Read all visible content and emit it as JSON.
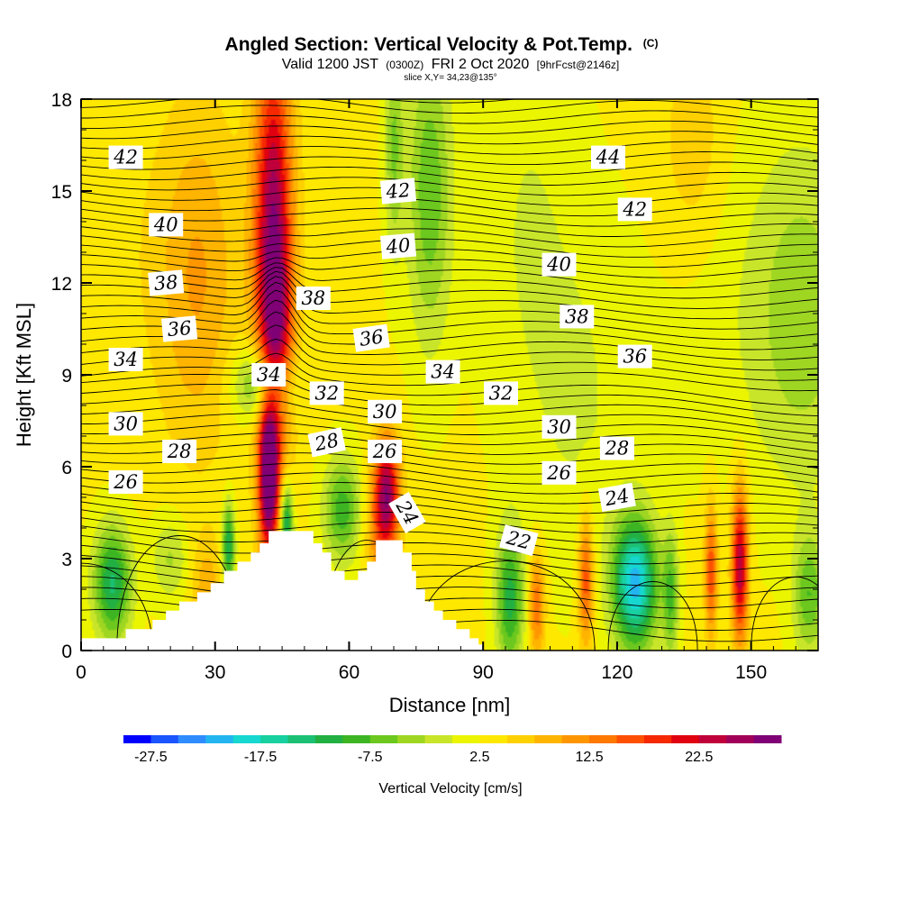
{
  "chart_data": {
    "type": "heatmap",
    "title": "Angled Section: Vertical Velocity & Pot.Temp.",
    "title_copyright": "(C)",
    "subtitle": {
      "prefix": "Valid 1200 JST",
      "utc": "(0300Z)",
      "date": "FRI 2 Oct 2020",
      "forecast": "[9hrFcst@2146z]"
    },
    "slice_text": "slice X,Y= 34,23@135°",
    "xlabel": "Distance [nm]",
    "ylabel": "Height [Kft MSL]",
    "xlim": [
      0,
      165
    ],
    "ylim": [
      0,
      18
    ],
    "xticks": [
      0,
      30,
      60,
      90,
      120,
      150
    ],
    "xtick_labels": [
      "0",
      "30",
      "60",
      "90",
      "120",
      "150"
    ],
    "yticks": [
      0,
      3,
      6,
      9,
      12,
      15,
      18
    ],
    "ytick_labels": [
      "0",
      "3",
      "6",
      "9",
      "12",
      "15",
      "18"
    ],
    "grid": false,
    "colorbar": {
      "label": "Vertical Velocity [cm/s]",
      "levels": [
        -30,
        -27.5,
        -25,
        -22.5,
        -20,
        -17.5,
        -15,
        -12.5,
        -10,
        -7.5,
        -5,
        -2.5,
        0,
        2.5,
        5,
        7.5,
        10,
        12.5,
        15,
        17.5,
        20,
        22.5,
        25,
        27.5,
        30
      ],
      "colors": [
        "#0000ff",
        "#1a55ff",
        "#2f8cff",
        "#23b5f0",
        "#16d8d0",
        "#18d0a0",
        "#1cc072",
        "#22b043",
        "#3db522",
        "#6cc81e",
        "#9ed622",
        "#c9e52a",
        "#ecf500",
        "#ffe800",
        "#ffd000",
        "#ffb400",
        "#ff9600",
        "#ff7800",
        "#ff5000",
        "#f52800",
        "#e00010",
        "#c0003a",
        "#a0005a",
        "#800075"
      ],
      "tick_values": [
        -27.5,
        -17.5,
        -7.5,
        2.5,
        12.5,
        22.5
      ],
      "tick_labels": [
        "-27.5",
        "-17.5",
        "-7.5",
        "2.5",
        "12.5",
        "22.5"
      ]
    },
    "vertical_velocity_features": [
      {
        "x": 43,
        "y": 13.5,
        "sx": 3,
        "sy": 4.5,
        "value": 24
      },
      {
        "x": 44,
        "y": 10,
        "sx": 2.5,
        "sy": 2,
        "value": 10
      },
      {
        "x": 42,
        "y": 5.6,
        "sx": 1.6,
        "sy": 1.8,
        "value": 28
      },
      {
        "x": 68.5,
        "y": 5.2,
        "sx": 2,
        "sy": 1.3,
        "value": 20
      },
      {
        "x": 67,
        "y": 4.0,
        "sx": 2.5,
        "sy": 1.5,
        "value": 8
      },
      {
        "x": 46,
        "y": 4.0,
        "sx": 1.0,
        "sy": 1.0,
        "value": -18
      },
      {
        "x": 33,
        "y": 3.4,
        "sx": 1.0,
        "sy": 1.0,
        "value": -16
      },
      {
        "x": 41,
        "y": 8.7,
        "sx": 4.5,
        "sy": 0.9,
        "value": -14
      },
      {
        "x": 7,
        "y": 2.2,
        "sx": 3,
        "sy": 1.3,
        "value": -16
      },
      {
        "x": 58.5,
        "y": 4.6,
        "sx": 3,
        "sy": 1.2,
        "value": -12
      },
      {
        "x": 96,
        "y": 1.7,
        "sx": 2.2,
        "sy": 1.6,
        "value": -14
      },
      {
        "x": 124,
        "y": 2.2,
        "sx": 3.5,
        "sy": 1.5,
        "value": -24
      },
      {
        "x": 132,
        "y": 1.8,
        "sx": 1.2,
        "sy": 1.5,
        "value": -10
      },
      {
        "x": 147.5,
        "y": 2.8,
        "sx": 1.3,
        "sy": 1.8,
        "value": 22
      },
      {
        "x": 141,
        "y": 2.6,
        "sx": 1.0,
        "sy": 1.5,
        "value": 14
      },
      {
        "x": 113,
        "y": 2.3,
        "sx": 1.2,
        "sy": 1.5,
        "value": 14
      },
      {
        "x": 102,
        "y": 1.5,
        "sx": 1.3,
        "sy": 1.2,
        "value": 12
      },
      {
        "x": 163,
        "y": 1.8,
        "sx": 2.5,
        "sy": 1.4,
        "value": -10
      },
      {
        "x": 78,
        "y": 15.0,
        "sx": 3.5,
        "sy": 3.5,
        "value": -10
      },
      {
        "x": 70,
        "y": 16.5,
        "sx": 1.5,
        "sy": 2.5,
        "value": -8
      },
      {
        "x": 26,
        "y": 12.0,
        "sx": 6,
        "sy": 4,
        "value": 6
      },
      {
        "x": 162,
        "y": 11.0,
        "sx": 8,
        "sy": 4,
        "value": -6
      },
      {
        "x": 137,
        "y": 16.5,
        "sx": 5,
        "sy": 2.5,
        "value": 4
      },
      {
        "x": 100,
        "y": 14.0,
        "sx": 8,
        "sy": 5,
        "value": -3
      },
      {
        "x": 112,
        "y": 8.0,
        "sx": 8,
        "sy": 4,
        "value": -3
      },
      {
        "x": 20,
        "y": 3.0,
        "sx": 3,
        "sy": 1.0,
        "value": -6
      },
      {
        "x": 28,
        "y": 2.0,
        "sx": 2.5,
        "sy": 1.2,
        "value": 6
      }
    ],
    "theta_contour_labels": [
      {
        "text": "42",
        "x": 10,
        "y": 16.1,
        "angle": 0
      },
      {
        "text": "44",
        "x": 118,
        "y": 16.1,
        "angle": 0
      },
      {
        "text": "42",
        "x": 71,
        "y": 15.0,
        "angle": 5
      },
      {
        "text": "40",
        "x": 19,
        "y": 13.9,
        "angle": 0
      },
      {
        "text": "42",
        "x": 124,
        "y": 14.4,
        "angle": 0
      },
      {
        "text": "40",
        "x": 71,
        "y": 13.2,
        "angle": 5
      },
      {
        "text": "40",
        "x": 107,
        "y": 12.6,
        "angle": 0
      },
      {
        "text": "38",
        "x": 19,
        "y": 12.0,
        "angle": 5
      },
      {
        "text": "38",
        "x": 52,
        "y": 11.5,
        "angle": 0
      },
      {
        "text": "38",
        "x": 111,
        "y": 10.9,
        "angle": 0
      },
      {
        "text": "36",
        "x": 22,
        "y": 10.5,
        "angle": 5
      },
      {
        "text": "36",
        "x": 65,
        "y": 10.2,
        "angle": 8
      },
      {
        "text": "36",
        "x": 124,
        "y": 9.6,
        "angle": 0
      },
      {
        "text": "34",
        "x": 10,
        "y": 9.5,
        "angle": 0
      },
      {
        "text": "34",
        "x": 42,
        "y": 9.0,
        "angle": 0
      },
      {
        "text": "34",
        "x": 81,
        "y": 9.1,
        "angle": 0
      },
      {
        "text": "32",
        "x": 55,
        "y": 8.4,
        "angle": 0
      },
      {
        "text": "32",
        "x": 94,
        "y": 8.4,
        "angle": 0
      },
      {
        "text": "30",
        "x": 10,
        "y": 7.4,
        "angle": 0
      },
      {
        "text": "30",
        "x": 68,
        "y": 7.8,
        "angle": 0
      },
      {
        "text": "30",
        "x": 107,
        "y": 7.3,
        "angle": 0
      },
      {
        "text": "28",
        "x": 22,
        "y": 6.5,
        "angle": 0
      },
      {
        "text": "28",
        "x": 55,
        "y": 6.8,
        "angle": 12
      },
      {
        "text": "28",
        "x": 120,
        "y": 6.6,
        "angle": 0
      },
      {
        "text": "26",
        "x": 10,
        "y": 5.5,
        "angle": 0
      },
      {
        "text": "26",
        "x": 68,
        "y": 6.5,
        "angle": 0
      },
      {
        "text": "26",
        "x": 107,
        "y": 5.8,
        "angle": 0
      },
      {
        "text": "24",
        "x": 73,
        "y": 4.5,
        "angle": -60
      },
      {
        "text": "24",
        "x": 120,
        "y": 5.0,
        "angle": 10
      },
      {
        "text": "22",
        "x": 98,
        "y": 3.6,
        "angle": -15
      }
    ],
    "terrain": [
      [
        0,
        0.4
      ],
      [
        10,
        0.4
      ],
      [
        10,
        0.7
      ],
      [
        16,
        0.7
      ],
      [
        16,
        1.0
      ],
      [
        19,
        1.0
      ],
      [
        19,
        1.3
      ],
      [
        22,
        1.3
      ],
      [
        22,
        1.6
      ],
      [
        26,
        1.6
      ],
      [
        26,
        1.9
      ],
      [
        29,
        1.9
      ],
      [
        29,
        2.2
      ],
      [
        32,
        2.2
      ],
      [
        32,
        2.6
      ],
      [
        35,
        2.6
      ],
      [
        35,
        2.9
      ],
      [
        38,
        2.9
      ],
      [
        38,
        3.2
      ],
      [
        40,
        3.2
      ],
      [
        40,
        3.5
      ],
      [
        42,
        3.5
      ],
      [
        42,
        3.9
      ],
      [
        52,
        3.9
      ],
      [
        52,
        3.5
      ],
      [
        54,
        3.5
      ],
      [
        54,
        3.2
      ],
      [
        56,
        3.2
      ],
      [
        56,
        2.6
      ],
      [
        59,
        2.6
      ],
      [
        59,
        2.3
      ],
      [
        62,
        2.3
      ],
      [
        62,
        2.6
      ],
      [
        64,
        2.6
      ],
      [
        64,
        2.9
      ],
      [
        66,
        2.9
      ],
      [
        66,
        3.6
      ],
      [
        72,
        3.6
      ],
      [
        72,
        3.2
      ],
      [
        74,
        3.2
      ],
      [
        74,
        2.6
      ],
      [
        75,
        2.6
      ],
      [
        75,
        2.0
      ],
      [
        77,
        2.0
      ],
      [
        77,
        1.6
      ],
      [
        79,
        1.6
      ],
      [
        79,
        1.3
      ],
      [
        81,
        1.3
      ],
      [
        81,
        1.0
      ],
      [
        84,
        1.0
      ],
      [
        84,
        0.7
      ],
      [
        87,
        0.7
      ],
      [
        87,
        0.4
      ],
      [
        89,
        0.4
      ],
      [
        89,
        0.2
      ],
      [
        90,
        0.2
      ],
      [
        90,
        0
      ]
    ]
  }
}
